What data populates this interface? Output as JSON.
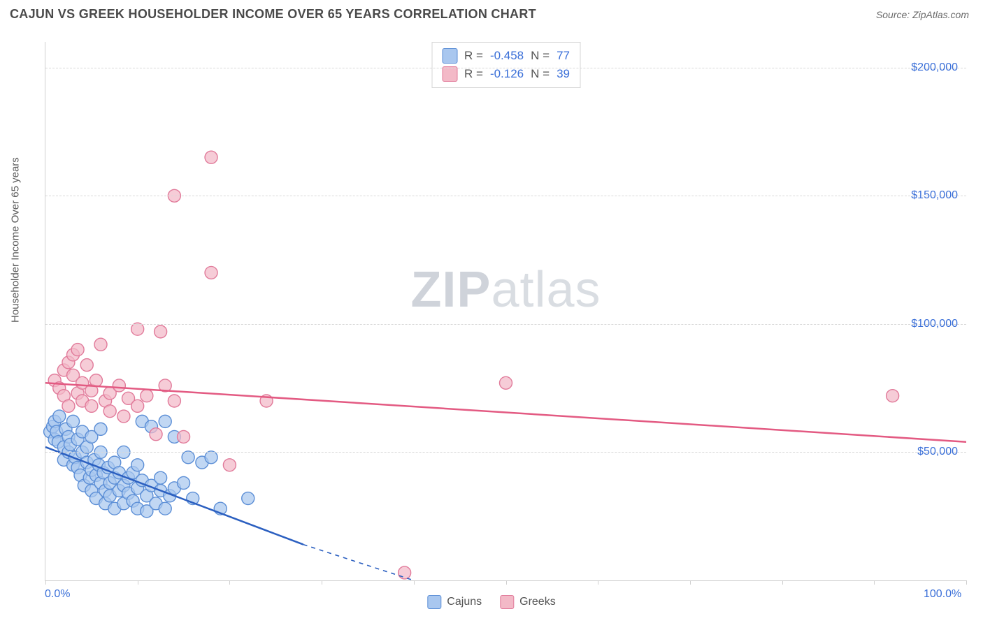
{
  "header": {
    "title": "CAJUN VS GREEK HOUSEHOLDER INCOME OVER 65 YEARS CORRELATION CHART",
    "source_prefix": "Source: ",
    "source_link": "ZipAtlas.com"
  },
  "chart": {
    "type": "scatter",
    "ylabel": "Householder Income Over 65 years",
    "ylabel_fontsize": 15,
    "xlim": [
      0,
      100
    ],
    "ylim": [
      0,
      210000
    ],
    "x_ticks": [
      0,
      10,
      20,
      30,
      40,
      50,
      60,
      70,
      80,
      90,
      100
    ],
    "x_tick_labels": {
      "0": "0.0%",
      "100": "100.0%"
    },
    "y_grid": [
      50000,
      100000,
      150000,
      200000
    ],
    "y_tick_labels": {
      "50000": "$50,000",
      "100000": "$100,000",
      "150000": "$150,000",
      "200000": "$200,000"
    },
    "background_color": "#ffffff",
    "grid_color": "#d8d8d8",
    "axis_color": "#cfcfcf",
    "tick_label_color": "#3a6fd8",
    "watermark": {
      "zip": "ZIP",
      "atlas": "atlas"
    },
    "series": [
      {
        "name": "Cajuns",
        "point_fill": "#a9c7ef",
        "point_stroke": "#5b8ed6",
        "point_opacity": 0.72,
        "point_radius": 9,
        "line_color": "#2b5fc0",
        "line_width": 2.5,
        "reg_solid": {
          "x1": 0,
          "y1": 52000,
          "x2": 28,
          "y2": 14000
        },
        "reg_dashed": {
          "x1": 28,
          "y1": 14000,
          "x2": 40,
          "y2": 0
        },
        "R": "-0.458",
        "N": "77",
        "points": [
          [
            0.5,
            58000
          ],
          [
            0.8,
            60000
          ],
          [
            1,
            55000
          ],
          [
            1,
            62000
          ],
          [
            1.2,
            58000
          ],
          [
            1.4,
            54000
          ],
          [
            1.5,
            64000
          ],
          [
            2,
            52000
          ],
          [
            2,
            47000
          ],
          [
            2.2,
            59000
          ],
          [
            2.5,
            56000
          ],
          [
            2.5,
            50000
          ],
          [
            2.7,
            53000
          ],
          [
            3,
            45000
          ],
          [
            3,
            62000
          ],
          [
            3.2,
            48000
          ],
          [
            3.5,
            55000
          ],
          [
            3.5,
            44000
          ],
          [
            3.8,
            41000
          ],
          [
            4,
            50000
          ],
          [
            4,
            58000
          ],
          [
            4.2,
            37000
          ],
          [
            4.5,
            46000
          ],
          [
            4.5,
            52000
          ],
          [
            4.8,
            40000
          ],
          [
            5,
            43000
          ],
          [
            5,
            35000
          ],
          [
            5,
            56000
          ],
          [
            5.3,
            47000
          ],
          [
            5.5,
            32000
          ],
          [
            5.5,
            41000
          ],
          [
            5.8,
            45000
          ],
          [
            6,
            38000
          ],
          [
            6,
            50000
          ],
          [
            6,
            59000
          ],
          [
            6.3,
            42000
          ],
          [
            6.5,
            35000
          ],
          [
            6.5,
            30000
          ],
          [
            6.8,
            44000
          ],
          [
            7,
            38000
          ],
          [
            7,
            33000
          ],
          [
            7.5,
            40000
          ],
          [
            7.5,
            46000
          ],
          [
            7.5,
            28000
          ],
          [
            8,
            42000
          ],
          [
            8,
            35000
          ],
          [
            8.5,
            37000
          ],
          [
            8.5,
            30000
          ],
          [
            8.5,
            50000
          ],
          [
            9,
            40000
          ],
          [
            9,
            34000
          ],
          [
            9.5,
            31000
          ],
          [
            9.5,
            42000
          ],
          [
            10,
            36000
          ],
          [
            10,
            28000
          ],
          [
            10,
            45000
          ],
          [
            10.5,
            39000
          ],
          [
            10.5,
            62000
          ],
          [
            11,
            33000
          ],
          [
            11,
            27000
          ],
          [
            11.5,
            37000
          ],
          [
            11.5,
            60000
          ],
          [
            12,
            30000
          ],
          [
            12.5,
            35000
          ],
          [
            12.5,
            40000
          ],
          [
            13,
            28000
          ],
          [
            13,
            62000
          ],
          [
            13.5,
            33000
          ],
          [
            14,
            36000
          ],
          [
            14,
            56000
          ],
          [
            15,
            38000
          ],
          [
            15.5,
            48000
          ],
          [
            16,
            32000
          ],
          [
            17,
            46000
          ],
          [
            18,
            48000
          ],
          [
            19,
            28000
          ],
          [
            22,
            32000
          ]
        ]
      },
      {
        "name": "Greeks",
        "point_fill": "#f3b9c7",
        "point_stroke": "#e17a9a",
        "point_opacity": 0.72,
        "point_radius": 9,
        "line_color": "#e35a82",
        "line_width": 2.5,
        "reg_solid": {
          "x1": 0,
          "y1": 77000,
          "x2": 100,
          "y2": 54000
        },
        "R": "-0.126",
        "N": "39",
        "points": [
          [
            1,
            78000
          ],
          [
            1.5,
            75000
          ],
          [
            2,
            82000
          ],
          [
            2,
            72000
          ],
          [
            2.5,
            85000
          ],
          [
            2.5,
            68000
          ],
          [
            3,
            80000
          ],
          [
            3,
            88000
          ],
          [
            3.5,
            73000
          ],
          [
            3.5,
            90000
          ],
          [
            4,
            70000
          ],
          [
            4,
            77000
          ],
          [
            4.5,
            84000
          ],
          [
            5,
            68000
          ],
          [
            5,
            74000
          ],
          [
            5.5,
            78000
          ],
          [
            6,
            92000
          ],
          [
            6.5,
            70000
          ],
          [
            7,
            66000
          ],
          [
            7,
            73000
          ],
          [
            8,
            76000
          ],
          [
            8.5,
            64000
          ],
          [
            9,
            71000
          ],
          [
            10,
            68000
          ],
          [
            10,
            98000
          ],
          [
            11,
            72000
          ],
          [
            12,
            57000
          ],
          [
            12.5,
            97000
          ],
          [
            13,
            76000
          ],
          [
            14,
            70000
          ],
          [
            15,
            56000
          ],
          [
            14,
            150000
          ],
          [
            18,
            165000
          ],
          [
            18,
            120000
          ],
          [
            20,
            45000
          ],
          [
            24,
            70000
          ],
          [
            39,
            3000
          ],
          [
            50,
            77000
          ],
          [
            92,
            72000
          ]
        ]
      }
    ],
    "legend_top": {
      "rows": [
        {
          "swatch_fill": "#a9c7ef",
          "swatch_stroke": "#5b8ed6",
          "text1": "R = ",
          "val1": "-0.458",
          "text2": "   N = ",
          "val2": "77"
        },
        {
          "swatch_fill": "#f3b9c7",
          "swatch_stroke": "#e17a9a",
          "text1": "R = ",
          "val1": " -0.126",
          "text2": "   N = ",
          "val2": "39"
        }
      ]
    },
    "legend_bottom": [
      {
        "swatch_fill": "#a9c7ef",
        "swatch_stroke": "#5b8ed6",
        "label": "Cajuns"
      },
      {
        "swatch_fill": "#f3b9c7",
        "swatch_stroke": "#e17a9a",
        "label": "Greeks"
      }
    ]
  }
}
